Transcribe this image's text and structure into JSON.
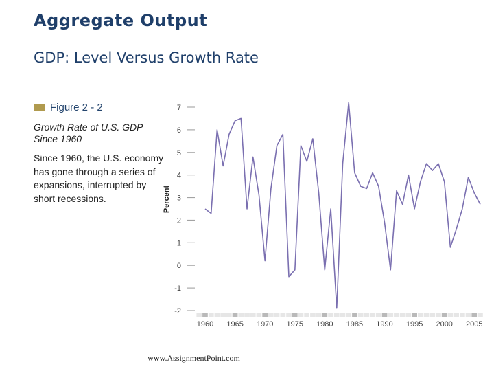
{
  "slide": {
    "title": "Aggregate Output",
    "subtitle": "GDP:  Level Versus Growth Rate",
    "figure_label": "Figure 2 - 2",
    "caption_title_line1": "Growth Rate of U.S. GDP",
    "caption_title_line2": "Since 1960",
    "caption_text": "Since 1960, the U.S. economy has gone through a series of expansions, interrupted by short recessions.",
    "footer": "www.AssignmentPoint.com"
  },
  "colors": {
    "title": "#1f3f6a",
    "subtitle": "#1f3f6a",
    "figure_swatch": "#b09a4e",
    "figure_label": "#24456e",
    "text": "#222222",
    "line": "#7a6fb0",
    "axis": "#444444",
    "tick": "#999999",
    "band_dark": "#b9b9b9",
    "band_light": "#e6e6e6"
  },
  "chart_data": {
    "type": "line",
    "title": "",
    "ylabel": "Percent",
    "xlabel": "",
    "ylim": [
      -2,
      7
    ],
    "y_ticks": [
      -2,
      -1,
      0,
      1,
      2,
      3,
      4,
      5,
      6,
      7
    ],
    "x_ticks": [
      1960,
      1965,
      1970,
      1975,
      1980,
      1985,
      1990,
      1995,
      2000,
      2005
    ],
    "xlim": [
      1959.5,
      2006.5
    ],
    "grid": false,
    "series": [
      {
        "x": [
          1960,
          1961,
          1962,
          1963,
          1964,
          1965,
          1966,
          1967,
          1968,
          1969,
          1970,
          1971,
          1972,
          1973,
          1974,
          1975,
          1976,
          1977,
          1978,
          1979,
          1980,
          1981,
          1982,
          1983,
          1984,
          1985,
          1986,
          1987,
          1988,
          1989,
          1990,
          1991,
          1992,
          1993,
          1994,
          1995,
          1996,
          1997,
          1998,
          1999,
          2000,
          2001,
          2002,
          2003,
          2004,
          2005,
          2006
        ],
        "values": [
          2.5,
          2.3,
          6.0,
          4.4,
          5.8,
          6.4,
          6.5,
          2.5,
          4.8,
          3.1,
          0.2,
          3.4,
          5.3,
          5.8,
          -0.5,
          -0.2,
          5.3,
          4.6,
          5.6,
          3.2,
          -0.2,
          2.5,
          -1.9,
          4.5,
          7.2,
          4.1,
          3.5,
          3.4,
          4.1,
          3.5,
          1.9,
          -0.2,
          3.3,
          2.7,
          4.0,
          2.5,
          3.7,
          4.5,
          4.2,
          4.5,
          3.7,
          0.8,
          1.6,
          2.5,
          3.9,
          3.2,
          2.7
        ]
      }
    ]
  }
}
